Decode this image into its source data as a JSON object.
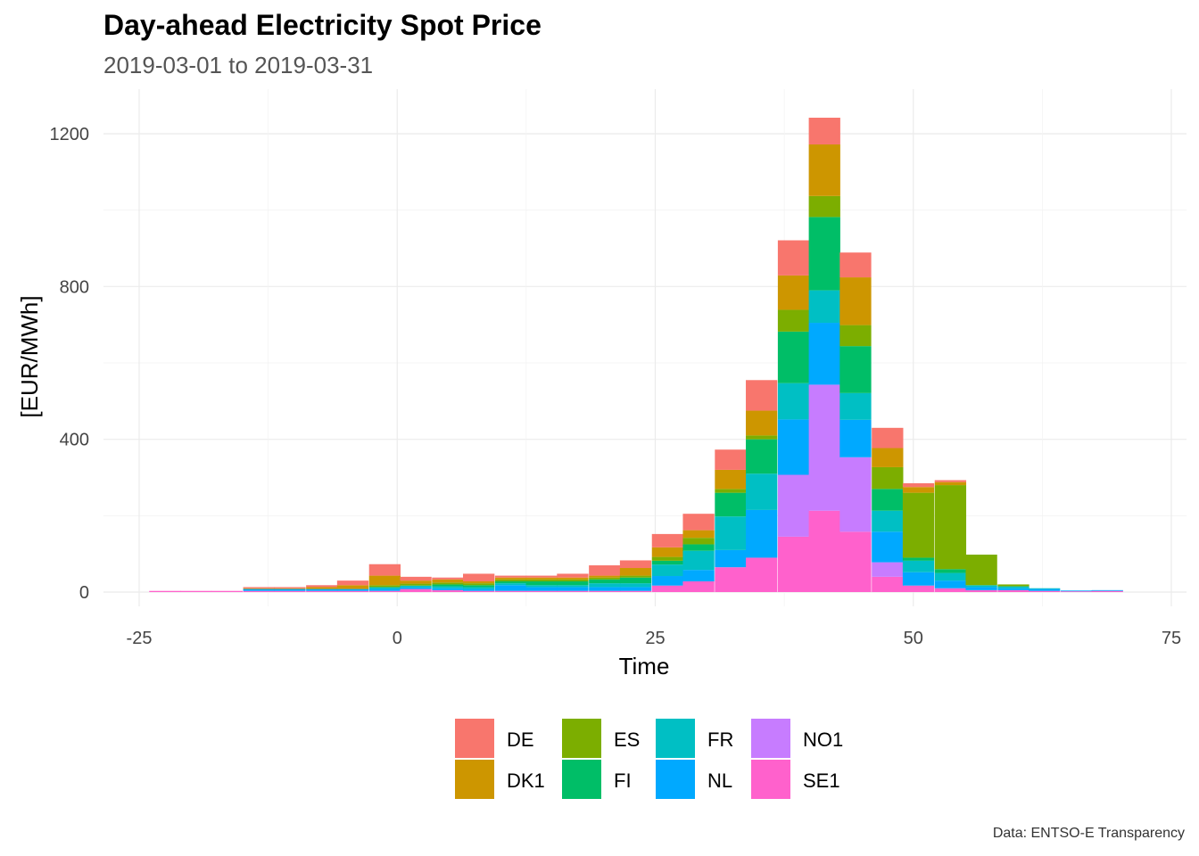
{
  "chart_data": {
    "type": "bar",
    "stacked": true,
    "title": "Day-ahead Electricity Spot Price",
    "subtitle": "2019-03-01 to 2019-03-31",
    "caption": "Data: ENTSO-E Transparency",
    "xlabel": "Time",
    "ylabel": "[EUR/MWh]",
    "xlim": [
      -25,
      75
    ],
    "ylim": [
      0,
      1250
    ],
    "xticks": [
      -25,
      0,
      25,
      50,
      75
    ],
    "yticks": [
      0,
      400,
      800,
      1200
    ],
    "grid": true,
    "legend_position": "bottom",
    "bin_width": 3.05,
    "x": [
      -22.5,
      -19.5,
      -16.5,
      -13.4,
      -10.4,
      -7.3,
      -4.3,
      -1.2,
      1.8,
      4.9,
      7.9,
      11.0,
      14.0,
      17.0,
      20.1,
      23.1,
      26.2,
      29.2,
      32.3,
      35.3,
      38.4,
      41.4,
      44.4,
      47.5,
      50.5,
      53.6,
      56.6,
      59.7,
      62.7,
      65.8,
      68.8
    ],
    "series": [
      {
        "name": "SE1",
        "color": "#FF61CC",
        "values": [
          3,
          3,
          3,
          3,
          3,
          3,
          3,
          3,
          8,
          5,
          3,
          3,
          3,
          3,
          3,
          3,
          17,
          28,
          65,
          90,
          145,
          213,
          158,
          40,
          17,
          10,
          5,
          5,
          3,
          2,
          3
        ]
      },
      {
        "name": "NO1",
        "color": "#C77CFF",
        "values": [
          0,
          0,
          0,
          0,
          0,
          0,
          0,
          0,
          0,
          0,
          0,
          0,
          0,
          0,
          0,
          0,
          0,
          0,
          0,
          0,
          162,
          330,
          195,
          38,
          0,
          0,
          0,
          0,
          0,
          0,
          0
        ]
      },
      {
        "name": "NL",
        "color": "#00A9FF",
        "values": [
          0,
          0,
          0,
          5,
          5,
          5,
          5,
          5,
          4,
          5,
          5,
          15,
          10,
          10,
          10,
          10,
          25,
          30,
          45,
          125,
          145,
          162,
          98,
          80,
          35,
          20,
          8,
          5,
          5,
          2,
          2
        ]
      },
      {
        "name": "FR",
        "color": "#00BFC4",
        "values": [
          0,
          0,
          0,
          0,
          0,
          0,
          0,
          5,
          5,
          5,
          5,
          5,
          5,
          5,
          10,
          10,
          30,
          50,
          88,
          95,
          95,
          85,
          70,
          55,
          30,
          20,
          5,
          5,
          2,
          0,
          0
        ]
      },
      {
        "name": "FI",
        "color": "#00BE67",
        "values": [
          0,
          0,
          0,
          0,
          0,
          0,
          0,
          0,
          0,
          5,
          5,
          5,
          10,
          10,
          10,
          15,
          10,
          17,
          62,
          90,
          135,
          192,
          123,
          57,
          8,
          10,
          0,
          0,
          0,
          0,
          0
        ]
      },
      {
        "name": "ES",
        "color": "#7CAE00",
        "values": [
          0,
          0,
          0,
          0,
          0,
          0,
          0,
          5,
          5,
          5,
          5,
          5,
          5,
          5,
          5,
          5,
          10,
          17,
          10,
          10,
          57,
          55,
          55,
          57,
          170,
          220,
          80,
          5,
          0,
          0,
          0
        ]
      },
      {
        "name": "DK1",
        "color": "#CD9600",
        "values": [
          0,
          0,
          0,
          2,
          2,
          5,
          10,
          25,
          8,
          8,
          5,
          5,
          5,
          5,
          5,
          20,
          25,
          20,
          50,
          65,
          90,
          135,
          125,
          50,
          15,
          8,
          0,
          0,
          0,
          0,
          0
        ]
      },
      {
        "name": "DE",
        "color": "#F8766D",
        "values": [
          0,
          0,
          0,
          3,
          3,
          5,
          12,
          30,
          10,
          5,
          20,
          5,
          5,
          10,
          27,
          20,
          35,
          43,
          53,
          80,
          92,
          70,
          65,
          53,
          10,
          5,
          0,
          0,
          0,
          0,
          0
        ]
      }
    ],
    "legend_order": [
      "DE",
      "DK1",
      "ES",
      "FI",
      "FR",
      "NL",
      "NO1",
      "SE1"
    ]
  }
}
